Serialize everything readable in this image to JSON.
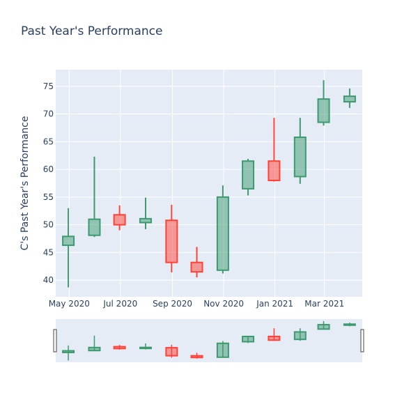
{
  "chart_data": {
    "type": "candlestick",
    "title": "Past Year's Performance",
    "xlabel": "",
    "ylabel": "C's Past Year's Performance",
    "ylim": [
      37,
      78
    ],
    "y_ticks": [
      40,
      45,
      50,
      55,
      60,
      65,
      70,
      75
    ],
    "x_tick_labels": [
      "May 2020",
      "Jul 2020",
      "Sep 2020",
      "Nov 2020",
      "Jan 2021",
      "Mar 2021"
    ],
    "x_tick_dates": [
      "2020-05-01",
      "2020-07-01",
      "2020-09-01",
      "2020-11-01",
      "2021-01-01",
      "2021-03-01"
    ],
    "x_range": [
      "2020-04-15",
      "2021-04-15"
    ],
    "grid": true,
    "rangeslider": true,
    "colors": {
      "increasing": "#3d9970",
      "decreasing": "#ff4136",
      "plot_bg": "#e5ecf6",
      "grid": "#ffffff",
      "text": "#2a3f5f"
    },
    "candles": [
      {
        "date": "2020-04-30",
        "open": 46.3,
        "high": 53.0,
        "low": 38.7,
        "close": 47.9
      },
      {
        "date": "2020-05-31",
        "open": 48.1,
        "high": 62.3,
        "low": 47.8,
        "close": 51.0
      },
      {
        "date": "2020-06-30",
        "open": 51.8,
        "high": 53.5,
        "low": 49.0,
        "close": 50.0
      },
      {
        "date": "2020-07-31",
        "open": 50.4,
        "high": 54.9,
        "low": 49.2,
        "close": 51.1
      },
      {
        "date": "2020-08-31",
        "open": 50.8,
        "high": 53.6,
        "low": 41.4,
        "close": 43.2
      },
      {
        "date": "2020-09-30",
        "open": 43.2,
        "high": 46.0,
        "low": 40.5,
        "close": 41.5
      },
      {
        "date": "2020-10-31",
        "open": 41.8,
        "high": 57.1,
        "low": 41.2,
        "close": 55.0
      },
      {
        "date": "2020-11-30",
        "open": 56.5,
        "high": 61.9,
        "low": 55.3,
        "close": 61.5
      },
      {
        "date": "2020-12-31",
        "open": 61.5,
        "high": 69.3,
        "low": 57.8,
        "close": 58.0
      },
      {
        "date": "2021-01-31",
        "open": 58.7,
        "high": 69.3,
        "low": 57.4,
        "close": 65.8
      },
      {
        "date": "2021-02-28",
        "open": 68.5,
        "high": 76.1,
        "low": 67.9,
        "close": 72.7
      },
      {
        "date": "2021-03-31",
        "open": 72.2,
        "high": 74.6,
        "low": 71.1,
        "close": 73.2
      }
    ]
  }
}
